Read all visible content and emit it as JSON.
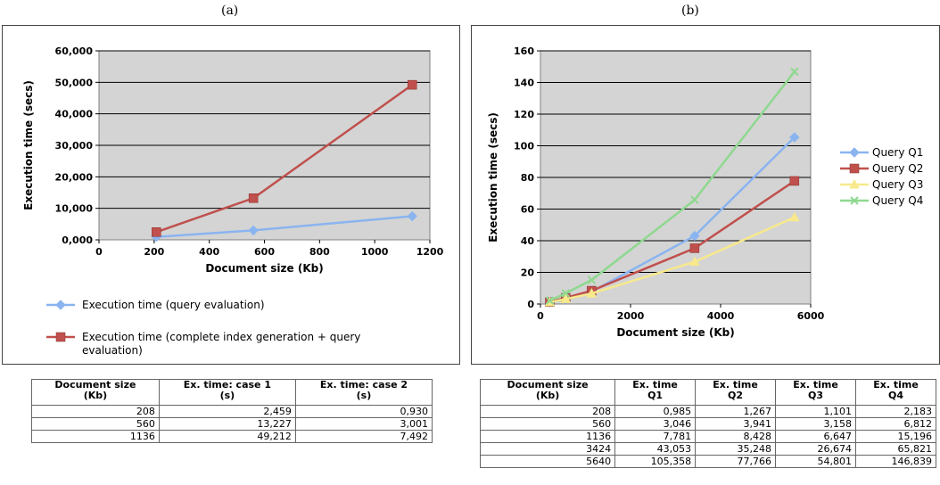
{
  "chart_data": [
    {
      "panel": "(a)",
      "type": "line",
      "xlabel": "Document size (Kb)",
      "ylabel": "Execution time (secs)",
      "xlim": [
        0,
        1200
      ],
      "ylim": [
        0,
        60000
      ],
      "xticks": [
        "0",
        "200",
        "400",
        "600",
        "800",
        "1000",
        "1200"
      ],
      "yticks": [
        "0,000",
        "10,000",
        "20,000",
        "30,000",
        "40,000",
        "50,000",
        "60,000"
      ],
      "grid": true,
      "legend_position": "bottom",
      "series": [
        {
          "name": "Execution time (query evaluation)",
          "color": "#8ab4f0",
          "marker": "diamond",
          "x": [
            208,
            560,
            1136
          ],
          "y": [
            930,
            3001,
            7492
          ]
        },
        {
          "name": "Execution time (complete index generation + query evaluation)",
          "color": "#c0504d",
          "marker": "square",
          "x": [
            208,
            560,
            1136
          ],
          "y": [
            2459,
            13227,
            49212
          ]
        }
      ]
    },
    {
      "panel": "(b)",
      "type": "line",
      "xlabel": "Document size (Kb)",
      "ylabel": "Execution time (secs)",
      "xlim": [
        0,
        6000
      ],
      "ylim": [
        0,
        160
      ],
      "xticks": [
        "0",
        "2000",
        "4000",
        "6000"
      ],
      "yticks": [
        "0",
        "20",
        "40",
        "60",
        "80",
        "100",
        "120",
        "140",
        "160"
      ],
      "grid": true,
      "legend_position": "right",
      "series": [
        {
          "name": "Query Q1",
          "color": "#8ab4f0",
          "marker": "diamond",
          "x": [
            208,
            560,
            1136,
            3424,
            5640
          ],
          "y": [
            0.985,
            3.046,
            7.781,
            43.053,
            105.358
          ]
        },
        {
          "name": "Query Q2",
          "color": "#c0504d",
          "marker": "square",
          "x": [
            208,
            560,
            1136,
            3424,
            5640
          ],
          "y": [
            1.267,
            3.941,
            8.428,
            35.248,
            77.766
          ]
        },
        {
          "name": "Query Q3",
          "color": "#f7e98c",
          "marker": "triangle",
          "x": [
            208,
            560,
            1136,
            3424,
            5640
          ],
          "y": [
            1.101,
            3.158,
            6.647,
            26.674,
            54.801
          ]
        },
        {
          "name": "Query Q4",
          "color": "#8fd88f",
          "marker": "x",
          "x": [
            208,
            560,
            1136,
            3424,
            5640
          ],
          "y": [
            2.183,
            6.812,
            15.196,
            65.821,
            146.839
          ]
        }
      ]
    }
  ],
  "tables": {
    "a": {
      "headers": [
        [
          "Document size",
          "(Kb)"
        ],
        [
          "Ex. time: case 1",
          "(s)"
        ],
        [
          "Ex. time: case 2",
          "(s)"
        ]
      ],
      "rows": [
        [
          "208",
          "2,459",
          "0,930"
        ],
        [
          "560",
          "13,227",
          "3,001"
        ],
        [
          "1136",
          "49,212",
          "7,492"
        ]
      ]
    },
    "b": {
      "headers": [
        [
          "Document size",
          "(Kb)"
        ],
        [
          "Ex. time",
          "Q1"
        ],
        [
          "Ex. time",
          "Q2"
        ],
        [
          "Ex. time",
          "Q3"
        ],
        [
          "Ex. time",
          "Q4"
        ]
      ],
      "rows": [
        [
          "208",
          "0,985",
          "1,267",
          "1,101",
          "2,183"
        ],
        [
          "560",
          "3,046",
          "3,941",
          "3,158",
          "6,812"
        ],
        [
          "1136",
          "7,781",
          "8,428",
          "6,647",
          "15,196"
        ],
        [
          "3424",
          "43,053",
          "35,248",
          "26,674",
          "65,821"
        ],
        [
          "5640",
          "105,358",
          "77,766",
          "54,801",
          "146,839"
        ]
      ]
    }
  }
}
